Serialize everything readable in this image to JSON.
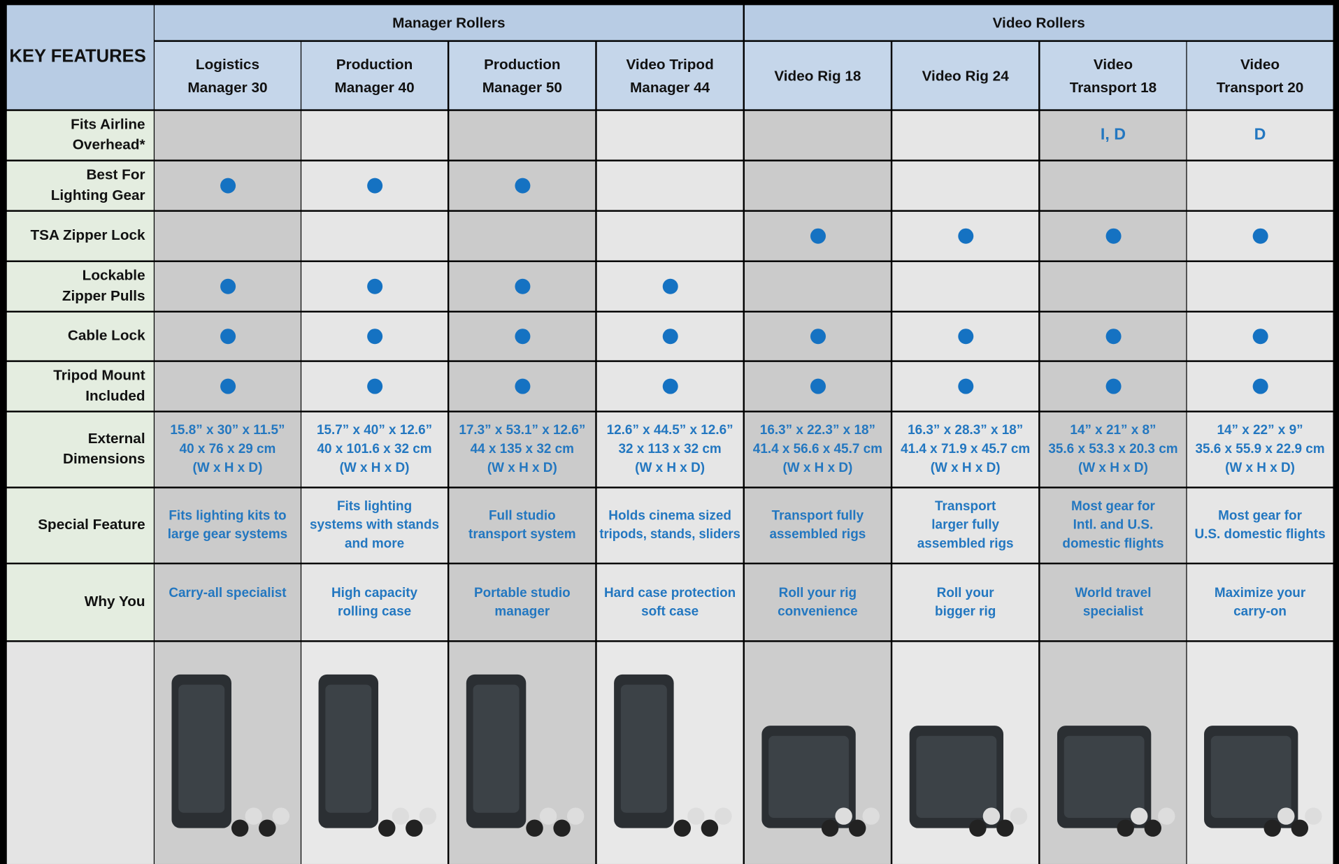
{
  "table": {
    "corner": "KEY FEATURES",
    "groups": [
      {
        "label": "Manager Rollers",
        "columns": [
          [
            "Logistics",
            "Manager 30"
          ],
          [
            "Production",
            "Manager 40"
          ],
          [
            "Production",
            "Manager 50"
          ],
          [
            "Video Tripod",
            "Manager 44"
          ]
        ]
      },
      {
        "label": "Video Rollers",
        "columns": [
          [
            "Video Rig 18"
          ],
          [
            "Video Rig 24"
          ],
          [
            "Video",
            "Transport 18"
          ],
          [
            "Video",
            "Transport 20"
          ]
        ]
      }
    ],
    "rows": [
      {
        "label": [
          "Fits Airline",
          "Overhead*"
        ],
        "cells": [
          null,
          null,
          null,
          null,
          null,
          null,
          [
            "I, D"
          ],
          [
            "D"
          ]
        ]
      },
      {
        "label": [
          "Best For",
          "Lighting Gear"
        ],
        "cells": [
          true,
          true,
          true,
          null,
          null,
          null,
          null,
          null
        ]
      },
      {
        "label": [
          "TSA Zipper Lock"
        ],
        "cells": [
          null,
          null,
          null,
          null,
          true,
          true,
          true,
          true
        ]
      },
      {
        "label": [
          "Lockable",
          "Zipper Pulls"
        ],
        "cells": [
          true,
          true,
          true,
          true,
          null,
          null,
          null,
          null
        ]
      },
      {
        "label": [
          "Cable Lock"
        ],
        "cells": [
          true,
          true,
          true,
          true,
          true,
          true,
          true,
          true
        ]
      },
      {
        "label": [
          "Tripod Mount",
          "Included"
        ],
        "cells": [
          true,
          true,
          true,
          true,
          true,
          true,
          true,
          true
        ]
      },
      {
        "label": [
          "External",
          "Dimensions"
        ],
        "cells": [
          [
            "15.8” x 30” x 11.5”",
            "40 x 76 x 29 cm",
            "(W x H x D)"
          ],
          [
            "15.7” x 40” x 12.6”",
            "40 x 101.6 x 32 cm",
            "(W x H x D)"
          ],
          [
            "17.3” x 53.1” x 12.6”",
            "44 x 135 x 32 cm",
            "(W x H x D)"
          ],
          [
            "12.6” x 44.5” x 12.6”",
            "32 x 113 x 32 cm",
            "(W x H x D)"
          ],
          [
            "16.3” x 22.3” x 18”",
            "41.4 x 56.6 x 45.7 cm",
            "(W x H x D)"
          ],
          [
            "16.3” x 28.3” x 18”",
            "41.4 x 71.9 x 45.7 cm",
            "(W x H x D)"
          ],
          [
            "14” x 21” x 8”",
            "35.6 x 53.3 x 20.3 cm",
            "(W x H x D)"
          ],
          [
            "14” x 22” x 9”",
            "35.6 x 55.9 x 22.9 cm",
            "(W x H x D)"
          ]
        ]
      },
      {
        "label": [
          "Special Feature"
        ],
        "cells": [
          [
            "Fits lighting kits to",
            "large gear systems"
          ],
          [
            "Fits lighting",
            "systems with stands",
            "and more"
          ],
          [
            "Full studio",
            "transport system"
          ],
          [
            "Holds cinema sized",
            "tripods, stands, sliders"
          ],
          [
            "Transport fully",
            "assembled rigs"
          ],
          [
            "Transport",
            "larger fully",
            "assembled rigs"
          ],
          [
            "Most gear for",
            "Intl. and U.S.",
            "domestic flights"
          ],
          [
            "Most gear for",
            "U.S. domestic flights"
          ]
        ]
      },
      {
        "label": [
          "Why You"
        ],
        "cells": [
          [
            "Carry-all specialist"
          ],
          [
            "High capacity",
            "rolling case"
          ],
          [
            "Portable studio",
            "manager"
          ],
          [
            "Hard case protection",
            "soft case"
          ],
          [
            "Roll your rig",
            "convenience"
          ],
          [
            "Roll your",
            "bigger rig"
          ],
          [
            "World travel",
            "specialist"
          ],
          [
            "Maximize your",
            "carry-on"
          ]
        ]
      }
    ]
  }
}
